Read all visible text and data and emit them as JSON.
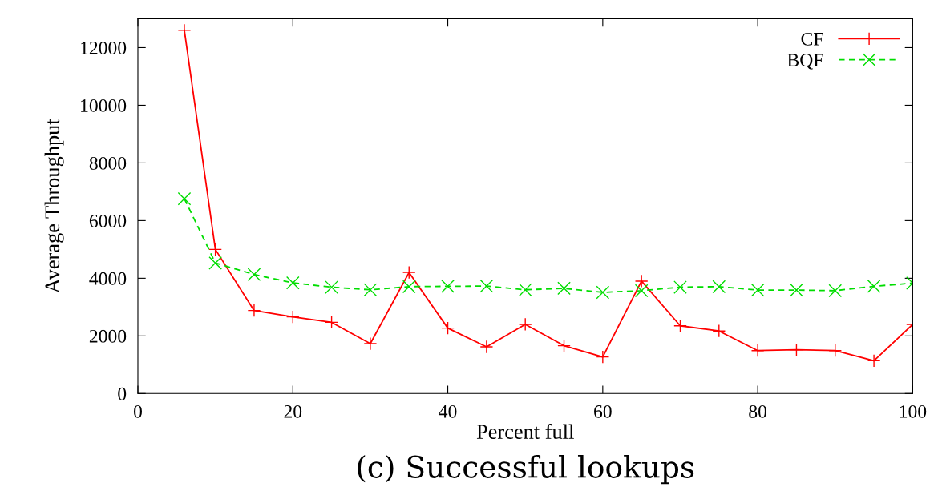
{
  "chart_data": {
    "type": "line",
    "xlabel": "Percent full",
    "ylabel": "Average Throughput",
    "annotations": [
      "(c) Successful lookups"
    ],
    "x": [
      6,
      10,
      15,
      20,
      25,
      30,
      35,
      40,
      45,
      50,
      55,
      60,
      65,
      70,
      75,
      80,
      85,
      90,
      95,
      100
    ],
    "series": [
      {
        "name": "CF",
        "color": "#ff0000",
        "marker": "cross",
        "line_style": "solid",
        "values": [
          12600,
          5000,
          2880,
          2660,
          2470,
          1730,
          4200,
          2270,
          1620,
          2400,
          1660,
          1270,
          3900,
          2350,
          2170,
          1490,
          1520,
          1490,
          1140,
          2400
        ]
      },
      {
        "name": "BQF",
        "color": "#00dd00",
        "marker": "x",
        "line_style": "dashed",
        "values": [
          6760,
          4530,
          4130,
          3840,
          3690,
          3600,
          3710,
          3720,
          3730,
          3600,
          3650,
          3510,
          3570,
          3690,
          3710,
          3590,
          3590,
          3570,
          3720,
          3830
        ]
      }
    ],
    "xlim": [
      0,
      100
    ],
    "ylim": [
      0,
      13000
    ],
    "xticks": [
      0,
      20,
      40,
      60,
      80,
      100
    ],
    "yticks": [
      0,
      2000,
      4000,
      6000,
      8000,
      10000,
      12000
    ],
    "grid": false,
    "legend": "top right"
  }
}
